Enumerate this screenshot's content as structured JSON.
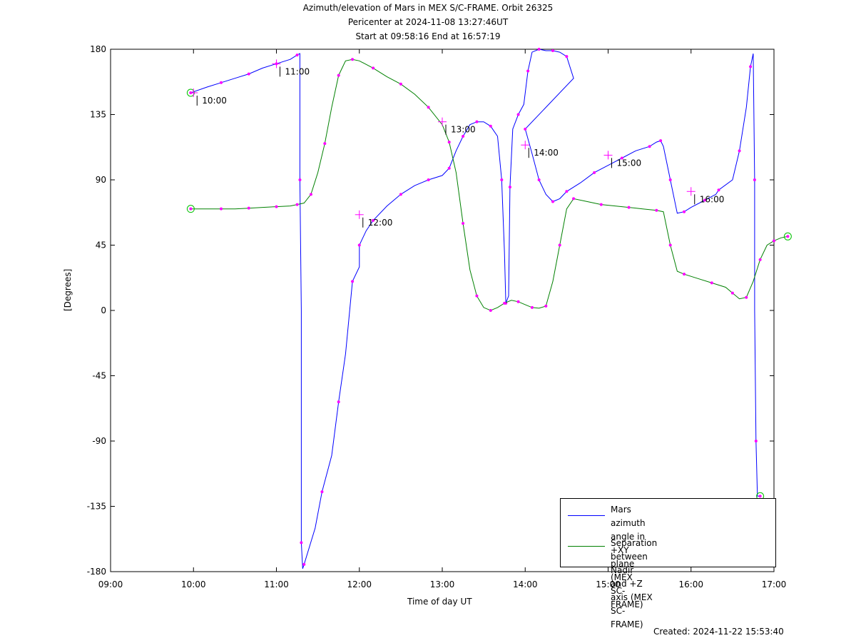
{
  "chart_data": {
    "type": "line",
    "title": "Azimuth/elevation of Mars in MEX S/C-FRAME.  Orbit 26325",
    "subtitle": "Pericenter at 2024-11-08 13:27:46UT",
    "subtitle2": "Start at 09:58:16 End at 16:57:19",
    "xlabel": "Time of day UT",
    "ylabel": "[Degrees]",
    "xlim": [
      "09:00",
      "17:00"
    ],
    "ylim": [
      -180,
      180
    ],
    "x_ticks": [
      "09:00",
      "10:00",
      "11:00",
      "12:00",
      "13:00",
      "14:00",
      "15:00",
      "16:00",
      "17:00"
    ],
    "y_ticks": [
      "180",
      "135",
      "90",
      "45",
      "0",
      "-45",
      "-90",
      "-135",
      "-180"
    ],
    "legend_position": "bottom-right",
    "series": [
      {
        "name": "Mars azimuth angle in +XY plane (MEX SC-FRAME)",
        "color": "#0000ff",
        "points": [
          [
            "09:58",
            150
          ],
          [
            "10:10",
            154
          ],
          [
            "10:20",
            157
          ],
          [
            "10:30",
            160
          ],
          [
            "10:40",
            163
          ],
          [
            "10:50",
            167
          ],
          [
            "11:00",
            170
          ],
          [
            "11:10",
            173
          ],
          [
            "11:15",
            176
          ],
          [
            "11:17",
            177
          ],
          [
            "11:17",
            90
          ],
          [
            "11:18",
            0
          ],
          [
            "11:18",
            -160
          ],
          [
            "11:19",
            -178
          ],
          [
            "11:20",
            -175
          ],
          [
            "11:28",
            -150
          ],
          [
            "11:33",
            -125
          ],
          [
            "11:40",
            -100
          ],
          [
            "11:45",
            -63
          ],
          [
            "11:50",
            -30
          ],
          [
            "11:55",
            20
          ],
          [
            "11:60",
            30
          ],
          [
            "12:00",
            45
          ],
          [
            "12:05",
            55
          ],
          [
            "12:10",
            62
          ],
          [
            "12:20",
            72
          ],
          [
            "12:30",
            80
          ],
          [
            "12:40",
            86
          ],
          [
            "12:50",
            90
          ],
          [
            "13:00",
            93
          ],
          [
            "13:05",
            98
          ],
          [
            "13:10",
            110
          ],
          [
            "13:15",
            120
          ],
          [
            "13:20",
            128
          ],
          [
            "13:25",
            130
          ],
          [
            "13:30",
            130
          ],
          [
            "13:35",
            127
          ],
          [
            "13:40",
            120
          ],
          [
            "13:43",
            90
          ],
          [
            "13:45",
            40
          ],
          [
            "13:46",
            5
          ],
          [
            "13:48",
            10
          ],
          [
            "13:49",
            85
          ],
          [
            "13:51",
            125
          ],
          [
            "13:55",
            135
          ],
          [
            "13:59",
            142
          ],
          [
            "13:62",
            165
          ],
          [
            "13:65",
            178
          ],
          [
            "13:70",
            180
          ],
          [
            "13:75",
            179
          ],
          [
            "13:80",
            179
          ],
          [
            "13:85",
            178
          ],
          [
            "13:90",
            175
          ],
          [
            "13:95",
            160
          ],
          [
            "14:00",
            125
          ],
          [
            "14:05",
            108
          ],
          [
            "14:10",
            90
          ],
          [
            "14:15",
            80
          ],
          [
            "14:20",
            75
          ],
          [
            "14:25",
            77
          ],
          [
            "14:30",
            82
          ],
          [
            "14:40",
            88
          ],
          [
            "14:50",
            95
          ],
          [
            "15:00",
            100
          ],
          [
            "15:10",
            105
          ],
          [
            "15:20",
            110
          ],
          [
            "15:30",
            113
          ],
          [
            "15:35",
            116
          ],
          [
            "15:38",
            117
          ],
          [
            "15:40",
            113
          ],
          [
            "15:45",
            90
          ],
          [
            "15:50",
            67
          ],
          [
            "15:55",
            68
          ],
          [
            "16:00",
            71
          ],
          [
            "16:10",
            76
          ],
          [
            "16:18",
            80
          ],
          [
            "16:20",
            83
          ],
          [
            "16:30",
            90
          ],
          [
            "16:35",
            110
          ],
          [
            "16:40",
            140
          ],
          [
            "16:43",
            168
          ],
          [
            "16:45",
            177
          ],
          [
            "16:46",
            90
          ],
          [
            "16:46",
            0
          ],
          [
            "16:47",
            -90
          ],
          [
            "16:48",
            -128
          ],
          [
            "16:50",
            -128
          ]
        ]
      },
      {
        "name": "Separation between Nadir and +Z axis (MEX SC-FRAME)",
        "color": "#008000",
        "points": [
          [
            "09:58",
            70
          ],
          [
            "10:10",
            70
          ],
          [
            "10:20",
            70
          ],
          [
            "10:30",
            70
          ],
          [
            "10:40",
            70.5
          ],
          [
            "10:50",
            71
          ],
          [
            "11:00",
            71.5
          ],
          [
            "11:10",
            72
          ],
          [
            "11:15",
            73
          ],
          [
            "11:20",
            74
          ],
          [
            "11:25",
            80
          ],
          [
            "11:30",
            95
          ],
          [
            "11:35",
            115
          ],
          [
            "11:40",
            140
          ],
          [
            "11:45",
            162
          ],
          [
            "11:50",
            172
          ],
          [
            "11:55",
            173
          ],
          [
            "12:00",
            172
          ],
          [
            "12:10",
            167
          ],
          [
            "12:20",
            161
          ],
          [
            "12:30",
            156
          ],
          [
            "12:40",
            149
          ],
          [
            "12:50",
            140
          ],
          [
            "13:00",
            128
          ],
          [
            "13:05",
            116
          ],
          [
            "13:10",
            95
          ],
          [
            "13:15",
            60
          ],
          [
            "13:20",
            28
          ],
          [
            "13:25",
            10
          ],
          [
            "13:30",
            2
          ],
          [
            "13:35",
            0
          ],
          [
            "13:40",
            2
          ],
          [
            "13:45",
            5
          ],
          [
            "13:50",
            7
          ],
          [
            "13:55",
            6
          ],
          [
            "14:00",
            4
          ],
          [
            "14:05",
            2
          ],
          [
            "14:10",
            1.5
          ],
          [
            "14:15",
            3
          ],
          [
            "14:20",
            20
          ],
          [
            "14:25",
            45
          ],
          [
            "14:30",
            70
          ],
          [
            "14:35",
            77
          ],
          [
            "14:45",
            75
          ],
          [
            "14:55",
            73
          ],
          [
            "15:05",
            72
          ],
          [
            "15:15",
            71
          ],
          [
            "15:25",
            70
          ],
          [
            "15:35",
            69
          ],
          [
            "15:40",
            68
          ],
          [
            "15:45",
            45
          ],
          [
            "15:50",
            27
          ],
          [
            "15:55",
            25
          ],
          [
            "16:05",
            22
          ],
          [
            "16:15",
            19
          ],
          [
            "16:25",
            16
          ],
          [
            "16:30",
            12
          ],
          [
            "16:35",
            8
          ],
          [
            "16:40",
            9
          ],
          [
            "16:45",
            20
          ],
          [
            "16:50",
            35
          ],
          [
            "16:55",
            45
          ],
          [
            "17:00",
            48
          ],
          [
            "17:05",
            50
          ],
          [
            "17:10",
            51
          ]
        ]
      }
    ],
    "annotations": [
      {
        "text": "10:00",
        "x": "10:00",
        "y": 150
      },
      {
        "text": "11:00",
        "x": "11:00",
        "y": 170
      },
      {
        "text": "12:00",
        "x": "12:00",
        "y": 66
      },
      {
        "text": "13:00",
        "x": "13:00",
        "y": 130
      },
      {
        "text": "14:00",
        "x": "14:00",
        "y": 114
      },
      {
        "text": "15:00",
        "x": "15:00",
        "y": 107
      },
      {
        "text": "16:00",
        "x": "16:00",
        "y": 82
      }
    ]
  },
  "legend": {
    "entry1": "Mars azimuth angle in +XY\nplane (MEX SC-FRAME)",
    "entry2": "Separation between Nadir\nand +Z axis (MEX SC-FRAME)"
  },
  "footer": {
    "created": "Created: 2024-11-22 15:53:40"
  }
}
